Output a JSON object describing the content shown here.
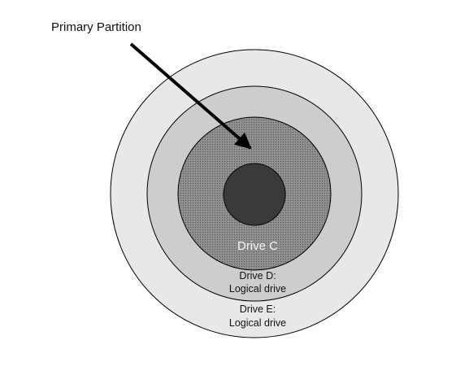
{
  "diagram": {
    "annotation": "Primary Partition",
    "drive_c": "Drive C",
    "drive_d_line1": "Drive D:",
    "drive_d_line2": "Logical drive",
    "drive_e_line1": "Drive E:",
    "drive_e_line2": "Logical drive"
  },
  "colors": {
    "outer_ring": "#e8e8e8",
    "middle_ring": "#cdcdcd",
    "primary_partition": "#888888",
    "core": "#3a3a3a",
    "stroke": "#000000",
    "arrow": "#000000",
    "drive_c_text": "#f5f5f5",
    "label_text": "#111111"
  }
}
